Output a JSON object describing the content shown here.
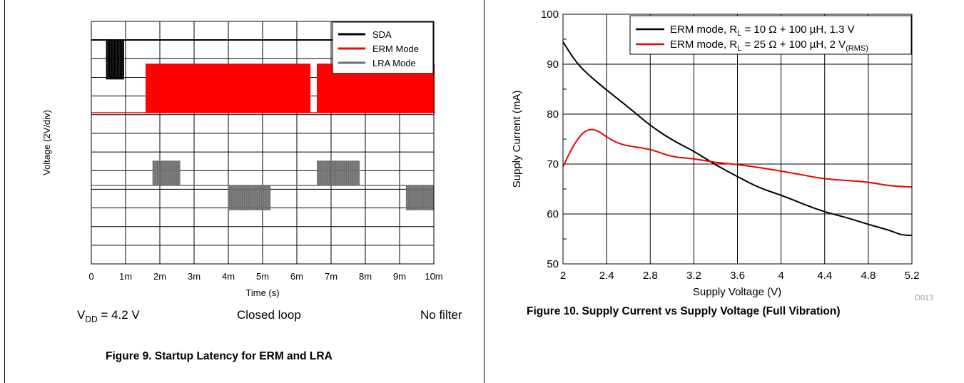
{
  "fig9": {
    "caption": "Figure 9. Startup Latency for ERM and LRA",
    "xlabel": "Time (s)",
    "ylabel": "Voltage (2V/div)",
    "vdd_prefix": "V",
    "vdd_sub": "DD",
    "vdd_suffix": " = 4.2 V",
    "cond2": "Closed loop",
    "cond3": "No filter"
  },
  "fig10": {
    "caption": "Figure 10. Supply Current vs Supply Voltage (Full Vibration)",
    "xlabel": "Supply Voltage (V)",
    "ylabel": "Supply Current (mA)",
    "tag": "D013"
  },
  "chart_data": [
    {
      "type": "line",
      "title": "",
      "xlabel": "Time (s)",
      "ylabel": "Voltage (2V/div)",
      "x_ticks": [
        "0",
        "1m",
        "2m",
        "3m",
        "4m",
        "5m",
        "6m",
        "7m",
        "8m",
        "9m",
        "10m"
      ],
      "xlim": [
        0,
        0.01
      ],
      "y_divisions": 10,
      "grid": true,
      "legend_position": "top-right",
      "series": [
        {
          "name": "SDA",
          "color": "#000000",
          "baseline_div": 9.0,
          "pulse_depth_div": 1.6,
          "bursts": [
            {
              "t0": 0.00045,
              "t1": 0.00098
            }
          ]
        },
        {
          "name": "ERM Mode",
          "color": "#ff0000",
          "baseline_div": 6.0,
          "high_div": 8.0,
          "bursts": [
            {
              "t0": 0.0016,
              "t1": 0.0064
            },
            {
              "t0": 0.0066,
              "t1": 0.01
            }
          ]
        },
        {
          "name": "LRA Mode",
          "color": "#6e6e6e",
          "baseline_div": 3.0,
          "bursts": [
            {
              "t0": 0.0018,
              "t1": 0.0026,
              "level_div": 4.0
            },
            {
              "t0": 0.004,
              "t1": 0.0052,
              "level_div": 2.0
            },
            {
              "t0": 0.0066,
              "t1": 0.0078,
              "level_div": 4.0
            },
            {
              "t0": 0.0092,
              "t1": 0.01,
              "level_div": 2.0
            }
          ]
        }
      ]
    },
    {
      "type": "line",
      "title": "",
      "xlabel": "Supply Voltage (V)",
      "ylabel": "Supply Current (mA)",
      "xlim": [
        2,
        5.2
      ],
      "ylim": [
        50,
        100
      ],
      "x_ticks": [
        "2",
        "2.4",
        "2.8",
        "3.2",
        "3.6",
        "4",
        "4.4",
        "4.8",
        "5.2"
      ],
      "y_ticks": [
        "50",
        "60",
        "70",
        "80",
        "90",
        "100"
      ],
      "grid": true,
      "legend_position": "top-right",
      "series": [
        {
          "name": "ERM mode, R_L = 10 Ω + 100 µH, 1.3 V",
          "color": "#000000",
          "x": [
            2.0,
            2.1,
            2.2,
            2.4,
            2.6,
            2.8,
            3.0,
            3.2,
            3.4,
            3.6,
            3.8,
            4.0,
            4.2,
            4.4,
            4.6,
            4.8,
            5.0,
            5.1,
            5.2
          ],
          "y": [
            94.5,
            91.0,
            88.5,
            84.8,
            81.4,
            77.7,
            74.8,
            72.6,
            69.8,
            67.5,
            65.2,
            63.8,
            62.0,
            60.4,
            59.3,
            57.9,
            56.7,
            55.8,
            55.7
          ]
        },
        {
          "name": "ERM mode, R_L = 25 Ω + 100 µH, 2 V(RMS)",
          "color": "#ee0000",
          "x": [
            2.0,
            2.1,
            2.2,
            2.3,
            2.4,
            2.5,
            2.6,
            2.8,
            3.0,
            3.2,
            3.4,
            3.6,
            3.8,
            4.0,
            4.2,
            4.4,
            4.6,
            4.8,
            5.0,
            5.2
          ],
          "y": [
            69.5,
            74.0,
            76.8,
            77.0,
            75.4,
            74.2,
            73.6,
            73.0,
            71.4,
            71.1,
            70.3,
            69.9,
            69.3,
            68.6,
            67.8,
            67.0,
            66.7,
            66.4,
            65.6,
            65.4
          ]
        }
      ]
    }
  ]
}
